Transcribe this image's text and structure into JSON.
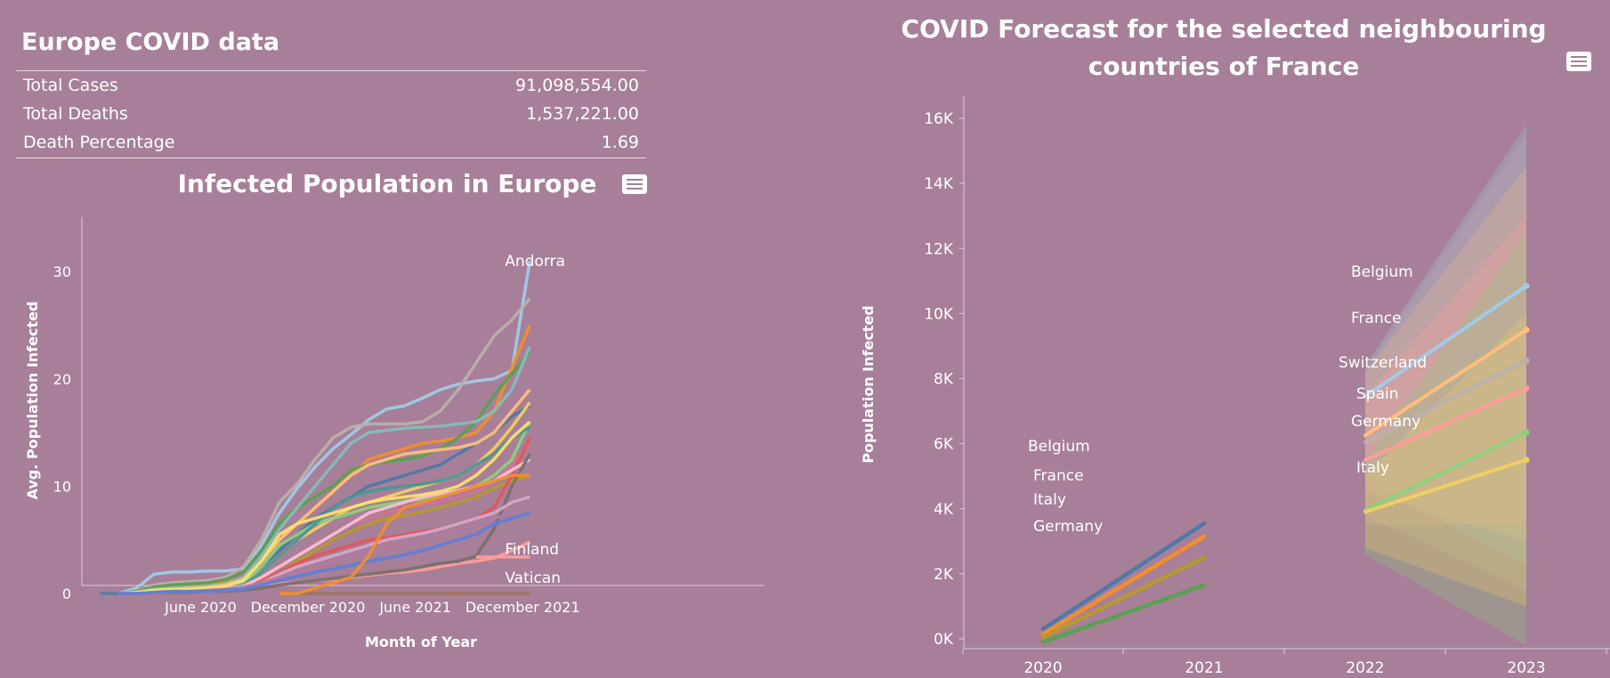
{
  "kpi": {
    "title": "Europe COVID data",
    "rows": [
      {
        "label": "Total Cases",
        "value": "91,098,554.00"
      },
      {
        "label": "Total Deaths",
        "value": "1,537,221.00"
      },
      {
        "label": "Death Percentage",
        "value": "1.69"
      }
    ]
  },
  "chart_data": [
    {
      "type": "line",
      "title": "Infected Population in Europe",
      "xlabel": "Month of Year",
      "ylabel": "Avg. Population Infected",
      "x_ticks": [
        "June 2020",
        "December 2020",
        "June 2021",
        "December 2021"
      ],
      "y_ticks": [
        "0",
        "10",
        "20",
        "30"
      ],
      "ylim": [
        0,
        33
      ],
      "x_months": [
        "2020-01",
        "2020-02",
        "2020-03",
        "2020-04",
        "2020-05",
        "2020-06",
        "2020-07",
        "2020-08",
        "2020-09",
        "2020-10",
        "2020-11",
        "2020-12",
        "2021-01",
        "2021-02",
        "2021-03",
        "2021-04",
        "2021-05",
        "2021-06",
        "2021-07",
        "2021-08",
        "2021-09",
        "2021-10",
        "2021-11",
        "2021-12",
        "2022-01"
      ],
      "grid": false,
      "series": [
        {
          "name": "Andorra",
          "color": "#a0cbe8",
          "values": [
            null,
            0,
            0.5,
            1.8,
            2.0,
            2.0,
            2.1,
            2.1,
            2.3,
            4.5,
            7.5,
            9.8,
            11.8,
            13.5,
            14.8,
            16.2,
            17.2,
            17.5,
            18.2,
            19.0,
            19.5,
            19.8,
            20.0,
            20.8,
            31
          ]
        },
        {
          "name": "Vatican",
          "color": "#9c755f",
          "values": [
            null,
            null,
            null,
            null,
            null,
            null,
            null,
            null,
            null,
            null,
            null,
            0,
            0,
            0,
            0,
            0,
            0,
            0,
            0,
            0,
            0,
            0,
            0,
            0,
            0
          ]
        },
        {
          "name": "Finland",
          "color": "#ff9d9a",
          "values": [
            0,
            0,
            0.1,
            0.2,
            0.3,
            0.3,
            0.4,
            0.5,
            0.6,
            0.7,
            0.9,
            1.0,
            1.2,
            1.3,
            1.5,
            1.7,
            1.9,
            2.0,
            2.2,
            2.5,
            2.8,
            3.0,
            3.3,
            4.0,
            4.8
          ]
        },
        {
          "name": "",
          "color": "#bab0ac",
          "values": [
            null,
            0,
            0.2,
            0.8,
            1.0,
            1.1,
            1.2,
            1.5,
            2.5,
            5.0,
            8.5,
            10.2,
            12.5,
            14.5,
            15.5,
            15.8,
            15.8,
            15.8,
            16.0,
            17.0,
            19.0,
            21.5,
            24.0,
            25.5,
            27.5
          ]
        },
        {
          "name": "",
          "color": "#f28e2b",
          "values": [
            null,
            0,
            0.1,
            0.5,
            0.6,
            0.7,
            0.8,
            1.0,
            1.5,
            3.0,
            5.0,
            6.5,
            8.0,
            9.5,
            11.0,
            12.5,
            13.0,
            13.5,
            14.0,
            14.2,
            14.5,
            15.0,
            17.0,
            21.0,
            25.0
          ]
        },
        {
          "name": "",
          "color": "#59a14f",
          "values": [
            null,
            0,
            0.2,
            0.6,
            0.8,
            0.9,
            1.0,
            1.3,
            2.0,
            4.0,
            6.5,
            8.0,
            9.0,
            10.0,
            11.5,
            12.0,
            12.3,
            12.5,
            12.8,
            13.5,
            14.5,
            16.0,
            18.5,
            20.5,
            22.5
          ]
        },
        {
          "name": "",
          "color": "#86bcb6",
          "values": [
            null,
            0,
            0.1,
            0.4,
            0.5,
            0.6,
            0.7,
            0.9,
            1.5,
            3.5,
            6.0,
            8.0,
            10.0,
            12.0,
            14.0,
            15.0,
            15.2,
            15.4,
            15.5,
            15.6,
            15.8,
            16.0,
            17.0,
            19.0,
            23.0
          ]
        },
        {
          "name": "",
          "color": "#4e79a7",
          "values": [
            0,
            0,
            0.1,
            0.3,
            0.4,
            0.5,
            0.6,
            0.8,
            1.2,
            2.5,
            4.0,
            5.5,
            7.0,
            8.0,
            9.0,
            10.0,
            10.5,
            11.0,
            11.5,
            12.0,
            13.0,
            14.0,
            15.0,
            16.5,
            17.5
          ]
        },
        {
          "name": "",
          "color": "#f1ce63",
          "values": [
            null,
            0,
            0.1,
            0.3,
            0.4,
            0.4,
            0.5,
            0.7,
            1.0,
            2.0,
            3.5,
            5.0,
            6.0,
            7.0,
            8.0,
            8.5,
            9.0,
            9.5,
            10.0,
            10.5,
            11.0,
            12.0,
            13.5,
            15.5,
            17.8
          ]
        },
        {
          "name": "",
          "color": "#ffbe7d",
          "values": [
            null,
            0,
            0.1,
            0.3,
            0.4,
            0.5,
            0.6,
            0.8,
            1.3,
            3.0,
            5.0,
            6.5,
            8.0,
            9.5,
            11.0,
            12.0,
            12.5,
            13.0,
            13.2,
            13.4,
            13.6,
            14.0,
            15.0,
            17.0,
            19.0
          ]
        },
        {
          "name": "",
          "color": "#d37295",
          "values": [
            null,
            0,
            0.1,
            0.2,
            0.3,
            0.3,
            0.4,
            0.5,
            0.8,
            1.5,
            2.5,
            3.5,
            4.5,
            5.5,
            6.5,
            7.0,
            7.5,
            8.0,
            8.3,
            8.6,
            9.0,
            9.5,
            10.5,
            12.0,
            14.0
          ]
        },
        {
          "name": "",
          "color": "#8cd17d",
          "values": [
            null,
            0,
            0.1,
            0.3,
            0.4,
            0.4,
            0.5,
            0.7,
            1.1,
            2.5,
            4.5,
            5.5,
            6.5,
            7.0,
            7.5,
            8.0,
            8.3,
            8.6,
            8.8,
            9.0,
            9.5,
            10.0,
            11.0,
            12.5,
            16.0
          ]
        },
        {
          "name": "",
          "color": "#b6992d",
          "values": [
            null,
            0,
            0.1,
            0.2,
            0.3,
            0.3,
            0.4,
            0.5,
            0.7,
            1.2,
            2.0,
            3.0,
            4.0,
            5.0,
            5.8,
            6.5,
            7.0,
            7.3,
            7.6,
            8.0,
            8.5,
            9.0,
            9.8,
            10.5,
            11.0
          ]
        },
        {
          "name": "",
          "color": "#499894",
          "values": [
            null,
            0,
            0.1,
            0.2,
            0.3,
            0.3,
            0.4,
            0.5,
            0.8,
            2.0,
            3.5,
            5.0,
            6.5,
            8.0,
            9.0,
            9.5,
            9.8,
            10.0,
            10.2,
            10.5,
            11.0,
            12.0,
            13.0,
            14.5,
            15.5
          ]
        },
        {
          "name": "",
          "color": "#e15759",
          "values": [
            null,
            0,
            0.1,
            0.2,
            0.2,
            0.3,
            0.3,
            0.4,
            0.6,
            1.2,
            2.0,
            2.8,
            3.5,
            4.0,
            4.5,
            5.0,
            5.2,
            5.5,
            5.8,
            6.0,
            6.5,
            7.0,
            8.0,
            11.0,
            14.5
          ]
        },
        {
          "name": "",
          "color": "#fabfd2",
          "values": [
            null,
            0,
            0.1,
            0.2,
            0.3,
            0.3,
            0.4,
            0.5,
            0.7,
            1.5,
            2.5,
            3.5,
            4.5,
            5.5,
            6.5,
            7.5,
            8.0,
            8.5,
            9.0,
            9.3,
            9.6,
            10.0,
            10.5,
            11.5,
            12.5
          ]
        },
        {
          "name": "",
          "color": "#79706e",
          "values": [
            null,
            0,
            0,
            0.1,
            0.1,
            0.1,
            0.2,
            0.2,
            0.3,
            0.5,
            0.8,
            1.0,
            1.2,
            1.4,
            1.6,
            1.8,
            2.0,
            2.2,
            2.5,
            2.8,
            3.0,
            3.5,
            6.0,
            10.0,
            13.0
          ]
        },
        {
          "name": "",
          "color": "#d4a6c8",
          "values": [
            null,
            0,
            0,
            0.1,
            0.2,
            0.2,
            0.2,
            0.3,
            0.5,
            1.0,
            1.8,
            2.5,
            3.0,
            3.5,
            4.0,
            4.5,
            5.0,
            5.3,
            5.6,
            6.0,
            6.5,
            7.0,
            7.5,
            8.5,
            9.0
          ]
        },
        {
          "name": "",
          "color": "#fbe06d",
          "values": [
            null,
            0,
            0.1,
            0.3,
            0.4,
            0.4,
            0.5,
            0.7,
            1.2,
            3.0,
            5.5,
            6.5,
            7.0,
            7.5,
            8.0,
            8.5,
            8.8,
            9.0,
            9.2,
            9.5,
            10.0,
            11.0,
            12.5,
            14.5,
            16.0
          ]
        },
        {
          "name": "",
          "color": "#b07aa1",
          "values": [
            null,
            0,
            0,
            0.1,
            0.2,
            0.2,
            0.3,
            0.4,
            0.6,
            1.0,
            1.5,
            2.0,
            2.5,
            3.0,
            3.5,
            4.0,
            4.3,
            4.6,
            5.0,
            5.5,
            6.0,
            6.5,
            7.0,
            7.5,
            8.0
          ]
        },
        {
          "name": "",
          "color": "#5e7ed8",
          "values": [
            null,
            0,
            0,
            0.1,
            0.2,
            0.2,
            0.2,
            0.3,
            0.4,
            0.8,
            1.2,
            1.6,
            2.0,
            2.3,
            2.6,
            3.0,
            3.3,
            3.6,
            4.0,
            4.5,
            5.0,
            5.5,
            6.5,
            7.0,
            7.5
          ]
        },
        {
          "name": "",
          "color": "#ff9d9a",
          "values": [
            null,
            null,
            null,
            null,
            null,
            null,
            null,
            null,
            null,
            null,
            null,
            null,
            null,
            null,
            null,
            null,
            null,
            null,
            null,
            null,
            null,
            3.4,
            3.4,
            3.4,
            3.4
          ]
        },
        {
          "name": "",
          "color": "#f28e2b",
          "values": [
            null,
            null,
            null,
            null,
            null,
            null,
            null,
            null,
            null,
            null,
            0,
            0,
            0.5,
            1.0,
            1.5,
            3.5,
            6.5,
            8.0,
            8.5,
            9.0,
            9.5,
            10.0,
            10.5,
            11.0,
            11.0
          ]
        }
      ]
    },
    {
      "type": "line",
      "title": "COVID Forecast for the selected neighbouring countries of France",
      "xlabel": "",
      "ylabel": "Population Infected",
      "x_ticks": [
        "2020",
        "2021",
        "2022",
        "2023"
      ],
      "y_ticks": [
        "0K",
        "2K",
        "4K",
        "6K",
        "8K",
        "10K",
        "12K",
        "14K",
        "16K"
      ],
      "ylim": [
        0,
        16500
      ],
      "grid": false,
      "actual": [
        {
          "name": "Belgium",
          "color": "#4e79a7",
          "x": [
            2020,
            2021
          ],
          "y": [
            300,
            3550
          ]
        },
        {
          "name": "France",
          "color": "#f28e2b",
          "x": [
            2020,
            2021
          ],
          "y": [
            150,
            3150
          ]
        },
        {
          "name": "Italy",
          "color": "#b6992d",
          "x": [
            2020,
            2021
          ],
          "y": [
            50,
            2500
          ]
        },
        {
          "name": "Germany",
          "color": "#59a14f",
          "x": [
            2020,
            2021
          ],
          "y": [
            -100,
            1650
          ]
        }
      ],
      "forecast": [
        {
          "name": "Belgium",
          "color": "#a0cbe8",
          "x": [
            2022,
            2023
          ],
          "y": [
            7450,
            10850
          ],
          "band": [
            [
              4800,
              8400
            ],
            [
              2300,
              15800
            ]
          ]
        },
        {
          "name": "France",
          "color": "#ffbe7d",
          "x": [
            2022,
            2023
          ],
          "y": [
            6250,
            9500
          ],
          "band": [
            [
              4500,
              8200
            ],
            [
              3000,
              14500
            ]
          ]
        },
        {
          "name": "Switzerland",
          "color": "#bab0ac",
          "x": [
            2022,
            2023
          ],
          "y": [
            6050,
            8550
          ],
          "band": [
            [
              3800,
              8300
            ],
            [
              1500,
              15500
            ]
          ]
        },
        {
          "name": "Spain",
          "color": "#ff9d9a",
          "x": [
            2022,
            2023
          ],
          "y": [
            5500,
            7700
          ],
          "band": [
            [
              3500,
              7500
            ],
            [
              3500,
              13000
            ]
          ]
        },
        {
          "name": "Germany",
          "color": "#8cd17d",
          "x": [
            2022,
            2023
          ],
          "y": [
            3950,
            6350
          ],
          "band": [
            [
              2600,
              5500
            ],
            [
              -200,
              12500
            ]
          ]
        },
        {
          "name": "Italy",
          "color": "#f1ce63",
          "x": [
            2022,
            2023
          ],
          "y": [
            3900,
            5500
          ],
          "band": [
            [
              2800,
              5000
            ],
            [
              1000,
              10000
            ]
          ]
        }
      ]
    }
  ]
}
